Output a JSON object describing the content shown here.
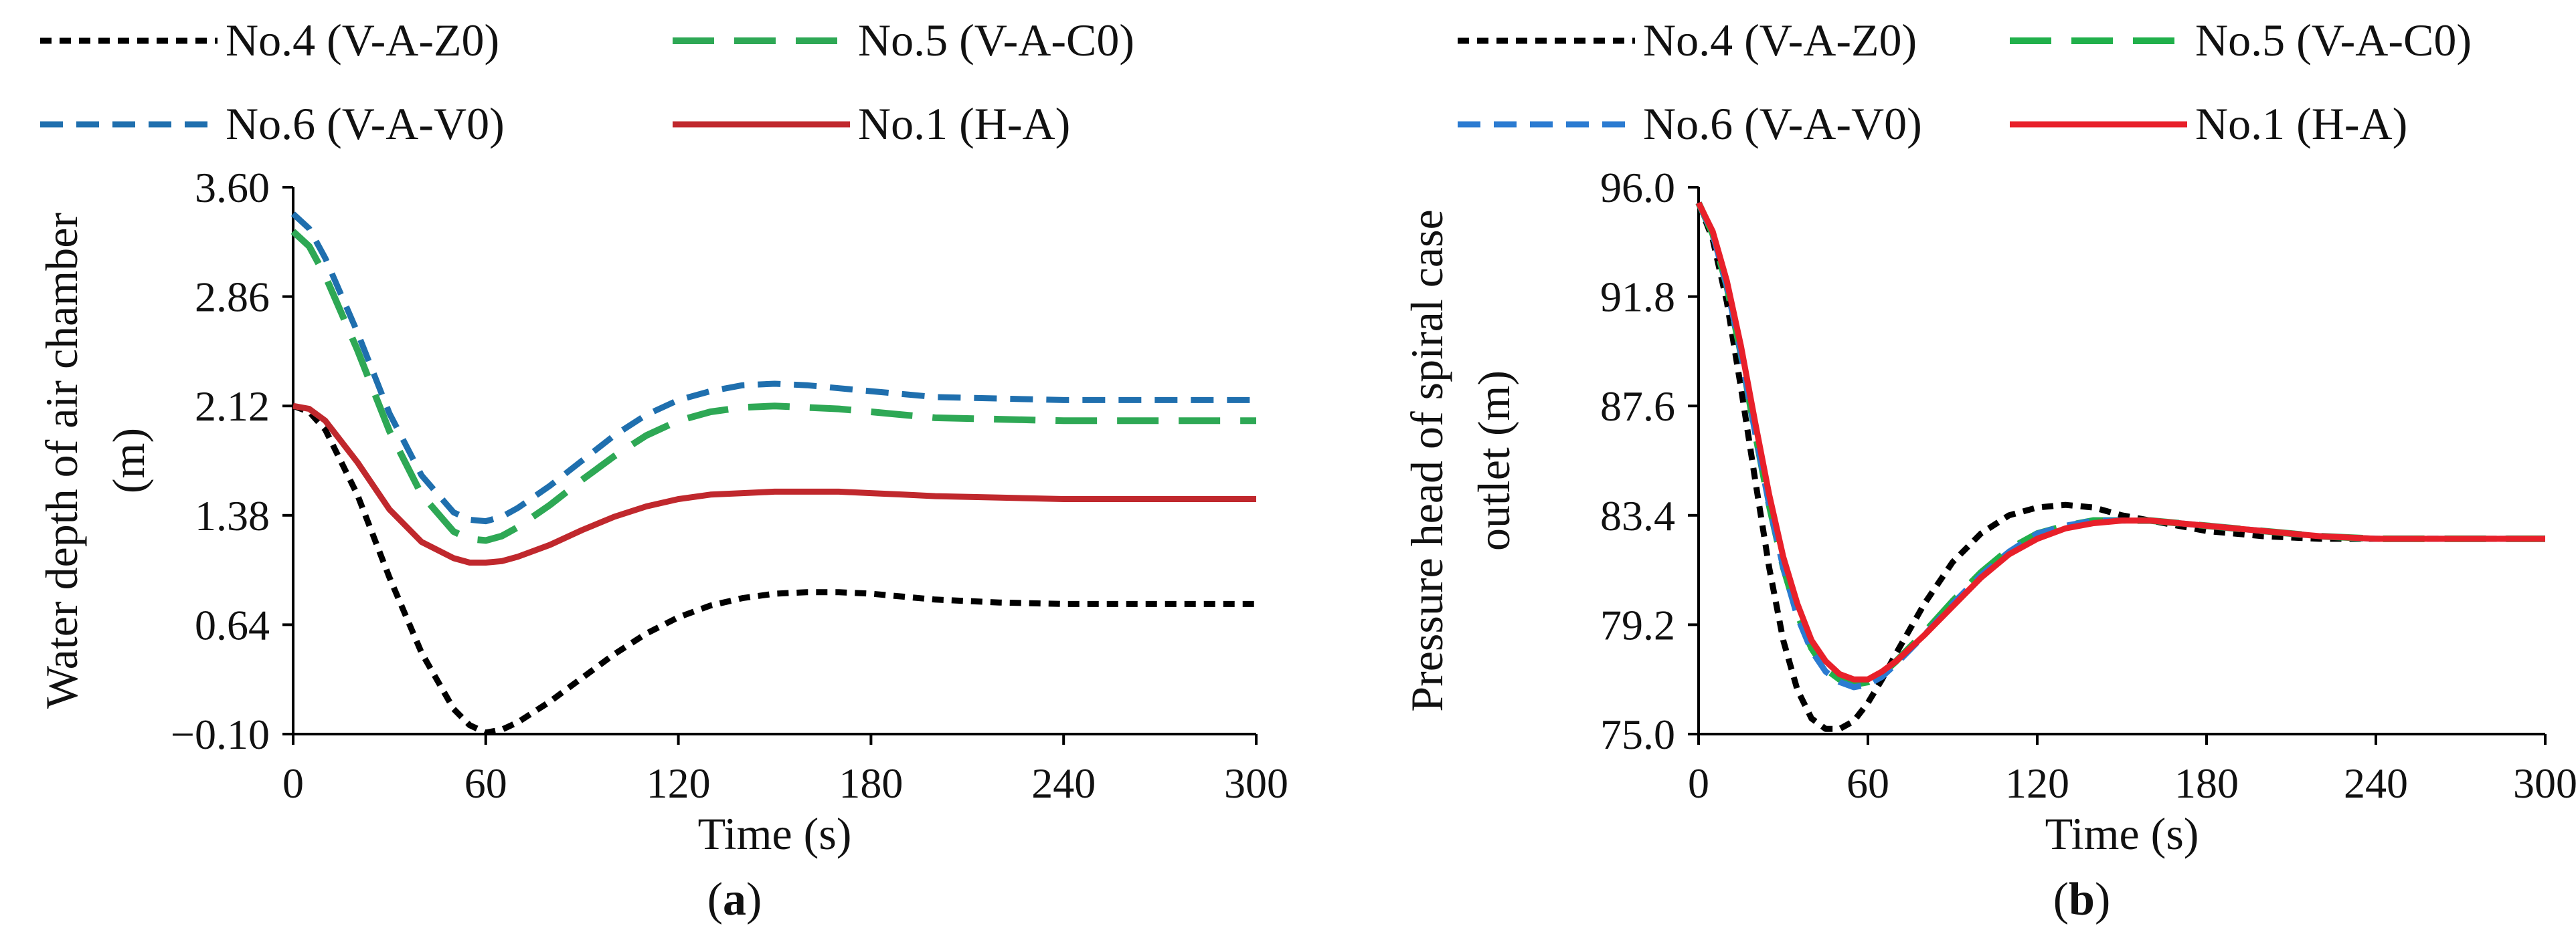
{
  "chart_data": [
    {
      "type": "line",
      "panel_label": "a",
      "xlabel": "Time (s)",
      "ylabel_lines": [
        "Water depth of air chamber",
        "(m)"
      ],
      "xlim": [
        0,
        300
      ],
      "ylim": [
        -0.1,
        3.6
      ],
      "xticks": [
        "0",
        "60",
        "120",
        "180",
        "240",
        "300"
      ],
      "yticks": [
        "3.60",
        "2.86",
        "2.12",
        "1.38",
        "0.64",
        "−0.10"
      ],
      "grid": false,
      "legend_position": "top",
      "series": [
        {
          "name": "No.4 (V-A-Z0)",
          "color": "#000000",
          "dash": "dotted",
          "x": [
            0,
            5,
            10,
            20,
            30,
            40,
            50,
            55,
            60,
            65,
            70,
            80,
            90,
            100,
            110,
            120,
            130,
            140,
            150,
            160,
            170,
            180,
            190,
            200,
            220,
            240,
            260,
            280,
            300
          ],
          "y": [
            2.12,
            2.08,
            1.96,
            1.52,
            0.96,
            0.45,
            0.07,
            -0.04,
            -0.09,
            -0.07,
            -0.02,
            0.12,
            0.28,
            0.44,
            0.58,
            0.69,
            0.77,
            0.82,
            0.85,
            0.86,
            0.86,
            0.85,
            0.83,
            0.81,
            0.79,
            0.78,
            0.78,
            0.78,
            0.78
          ]
        },
        {
          "name": "No.5 (V-A-C0)",
          "color": "#2ea855",
          "dash": "long-dash",
          "x": [
            0,
            5,
            10,
            20,
            30,
            40,
            50,
            55,
            60,
            65,
            70,
            80,
            90,
            100,
            110,
            120,
            130,
            140,
            150,
            160,
            170,
            180,
            190,
            200,
            220,
            240,
            260,
            280,
            300
          ],
          "y": [
            3.3,
            3.2,
            3.0,
            2.5,
            1.95,
            1.52,
            1.27,
            1.22,
            1.21,
            1.24,
            1.3,
            1.45,
            1.62,
            1.78,
            1.92,
            2.02,
            2.08,
            2.11,
            2.12,
            2.11,
            2.1,
            2.08,
            2.06,
            2.04,
            2.03,
            2.02,
            2.02,
            2.02,
            2.02
          ]
        },
        {
          "name": "No.6 (V-A-V0)",
          "color": "#1f6fae",
          "dash": "dashed",
          "x": [
            0,
            5,
            10,
            20,
            30,
            40,
            50,
            55,
            60,
            65,
            70,
            80,
            90,
            100,
            110,
            120,
            130,
            140,
            150,
            160,
            170,
            180,
            190,
            200,
            220,
            240,
            260,
            280,
            300
          ],
          "y": [
            3.42,
            3.32,
            3.12,
            2.62,
            2.07,
            1.65,
            1.4,
            1.35,
            1.34,
            1.37,
            1.43,
            1.58,
            1.75,
            1.92,
            2.06,
            2.16,
            2.22,
            2.26,
            2.27,
            2.26,
            2.24,
            2.22,
            2.2,
            2.18,
            2.17,
            2.16,
            2.16,
            2.16,
            2.16
          ]
        },
        {
          "name": "No.1 (H-A)",
          "color": "#c0282d",
          "dash": "solid",
          "x": [
            0,
            5,
            10,
            20,
            30,
            40,
            50,
            55,
            60,
            65,
            70,
            80,
            90,
            100,
            110,
            120,
            130,
            140,
            150,
            160,
            170,
            180,
            190,
            200,
            220,
            240,
            260,
            280,
            300
          ],
          "y": [
            2.12,
            2.1,
            2.02,
            1.74,
            1.42,
            1.2,
            1.09,
            1.06,
            1.06,
            1.07,
            1.1,
            1.18,
            1.28,
            1.37,
            1.44,
            1.49,
            1.52,
            1.53,
            1.54,
            1.54,
            1.54,
            1.53,
            1.52,
            1.51,
            1.5,
            1.49,
            1.49,
            1.49,
            1.49
          ]
        }
      ]
    },
    {
      "type": "line",
      "panel_label": "b",
      "xlabel": "Time (s)",
      "ylabel_lines": [
        "Pressure head of spiral case",
        "outlet (m)"
      ],
      "xlim": [
        0,
        300
      ],
      "ylim": [
        75.0,
        96.0
      ],
      "xticks": [
        "0",
        "60",
        "120",
        "180",
        "240",
        "300"
      ],
      "yticks": [
        "96.0",
        "91.8",
        "87.6",
        "83.4",
        "79.2",
        "75.0"
      ],
      "grid": false,
      "legend_position": "top",
      "series": [
        {
          "name": "No.4 (V-A-Z0)",
          "color": "#000000",
          "dash": "dotted",
          "x": [
            0,
            5,
            10,
            15,
            20,
            25,
            30,
            35,
            40,
            45,
            50,
            55,
            60,
            65,
            70,
            80,
            90,
            100,
            110,
            120,
            130,
            140,
            150,
            160,
            170,
            180,
            200,
            220,
            240,
            260,
            280,
            300
          ],
          "y": [
            95.4,
            94.0,
            91.6,
            88.3,
            84.8,
            81.4,
            78.6,
            76.7,
            75.6,
            75.2,
            75.2,
            75.5,
            76.2,
            77.1,
            78.1,
            80.0,
            81.6,
            82.7,
            83.4,
            83.7,
            83.8,
            83.7,
            83.4,
            83.2,
            83.0,
            82.8,
            82.6,
            82.5,
            82.5,
            82.5,
            82.5,
            82.5
          ]
        },
        {
          "name": "No.5 (V-A-C0)",
          "color": "#21b04b",
          "dash": "long-dash",
          "x": [
            0,
            5,
            10,
            15,
            20,
            25,
            30,
            35,
            40,
            45,
            50,
            55,
            60,
            65,
            70,
            80,
            90,
            100,
            110,
            120,
            130,
            140,
            150,
            160,
            170,
            180,
            200,
            220,
            240,
            260,
            280,
            300
          ],
          "y": [
            95.4,
            94.2,
            92.2,
            89.6,
            86.6,
            83.8,
            81.4,
            79.6,
            78.3,
            77.5,
            77.1,
            76.9,
            77.0,
            77.3,
            77.8,
            78.9,
            80.1,
            81.2,
            82.1,
            82.7,
            83.0,
            83.2,
            83.2,
            83.2,
            83.1,
            83.0,
            82.8,
            82.6,
            82.5,
            82.5,
            82.5,
            82.5
          ]
        },
        {
          "name": "No.6 (V-A-V0)",
          "color": "#2b7bd1",
          "dash": "dashed",
          "x": [
            0,
            5,
            10,
            15,
            20,
            25,
            30,
            35,
            40,
            45,
            50,
            55,
            60,
            65,
            70,
            80,
            90,
            100,
            110,
            120,
            130,
            140,
            150,
            160,
            170,
            180,
            200,
            220,
            240,
            260,
            280,
            300
          ],
          "y": [
            95.4,
            94.2,
            92.2,
            89.6,
            86.6,
            83.8,
            81.4,
            79.5,
            78.2,
            77.4,
            77.0,
            76.8,
            76.9,
            77.2,
            77.7,
            78.8,
            80.0,
            81.1,
            82.0,
            82.7,
            83.0,
            83.2,
            83.2,
            83.2,
            83.1,
            83.0,
            82.8,
            82.6,
            82.5,
            82.5,
            82.5,
            82.5
          ]
        },
        {
          "name": "No.1 (H-A)",
          "color": "#e8202a",
          "dash": "solid",
          "x": [
            0,
            5,
            10,
            15,
            20,
            25,
            30,
            35,
            40,
            45,
            50,
            55,
            60,
            65,
            70,
            80,
            90,
            100,
            110,
            120,
            130,
            140,
            150,
            160,
            170,
            180,
            200,
            220,
            240,
            260,
            280,
            300
          ],
          "y": [
            95.4,
            94.3,
            92.4,
            89.9,
            87.0,
            84.2,
            81.8,
            80.0,
            78.6,
            77.8,
            77.3,
            77.1,
            77.1,
            77.4,
            77.8,
            78.8,
            79.9,
            81.0,
            81.9,
            82.5,
            82.9,
            83.1,
            83.2,
            83.2,
            83.1,
            83.0,
            82.8,
            82.6,
            82.5,
            82.5,
            82.5,
            82.5
          ]
        }
      ]
    }
  ]
}
